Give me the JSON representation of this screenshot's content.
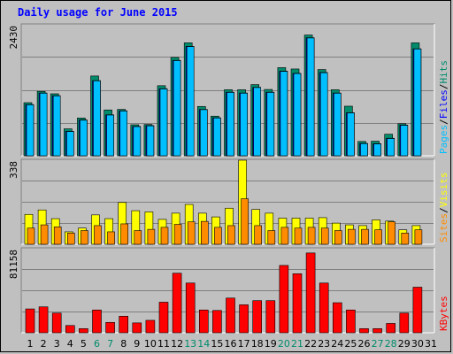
{
  "title": "Daily usage for June 2015",
  "panels": {
    "top": {
      "max_label": "2430",
      "ymax": 2430,
      "labels": [
        {
          "text": "Pages",
          "color": "#00bfff"
        },
        {
          "text": "/",
          "color": "#000000"
        },
        {
          "text": "Files",
          "color": "#0000ff"
        },
        {
          "text": "/",
          "color": "#000000"
        },
        {
          "text": "Hits",
          "color": "#008b6b"
        }
      ]
    },
    "middle": {
      "max_label": "338",
      "ymax": 338,
      "labels": [
        {
          "text": "Sites",
          "color": "#ff8c00"
        },
        {
          "text": "/",
          "color": "#000000"
        },
        {
          "text": "Visits",
          "color": "#ffff00"
        }
      ]
    },
    "bottom": {
      "max_label": "81158",
      "ymax": 81158,
      "labels": [
        {
          "text": "KBytes",
          "color": "#ff0000"
        }
      ]
    }
  },
  "colors": {
    "hits": "#008b6b",
    "files": "#0000ff",
    "pages": "#00bfff",
    "visits": "#ffff00",
    "sites": "#ff8c00",
    "kbytes": "#ff0000",
    "weekend_day": "#008b6b",
    "weekday": "#000000",
    "title": "#0000ff"
  },
  "chart_data": {
    "type": "bar",
    "title": "Daily usage for June 2015",
    "categories": [
      "1",
      "2",
      "3",
      "4",
      "5",
      "6",
      "7",
      "8",
      "9",
      "10",
      "11",
      "12",
      "13",
      "14",
      "15",
      "16",
      "17",
      "18",
      "19",
      "20",
      "21",
      "22",
      "23",
      "24",
      "25",
      "26",
      "27",
      "28",
      "29",
      "30",
      "31"
    ],
    "weekend_days": [
      "6",
      "7",
      "13",
      "14",
      "20",
      "21",
      "27",
      "28"
    ],
    "series": [
      {
        "name": "Hits",
        "values": [
          985,
          1195,
          1150,
          500,
          700,
          1480,
          850,
          860,
          575,
          580,
          1300,
          1825,
          2095,
          915,
          735,
          1225,
          1225,
          1320,
          1230,
          1635,
          1610,
          2240,
          1600,
          1225,
          920,
          265,
          270,
          400,
          595,
          2095,
          0
        ]
      },
      {
        "name": "Files",
        "values": [
          950,
          1165,
          1115,
          455,
          665,
          1395,
          760,
          835,
          545,
          560,
          1245,
          1770,
          2030,
          860,
          705,
          1180,
          1165,
          1270,
          1180,
          1570,
          1530,
          2190,
          1545,
          1165,
          800,
          230,
          225,
          325,
          570,
          1985,
          0
        ]
      },
      {
        "name": "Pages",
        "values": [
          945,
          1160,
          1110,
          450,
          660,
          1390,
          755,
          830,
          540,
          555,
          1240,
          1765,
          2025,
          855,
          700,
          1175,
          1160,
          1265,
          1175,
          1565,
          1525,
          2185,
          1540,
          1160,
          795,
          225,
          220,
          320,
          565,
          1980,
          0
        ]
      },
      {
        "name": "Visits",
        "values": [
          120,
          138,
          103,
          50,
          65,
          118,
          103,
          168,
          135,
          130,
          100,
          125,
          160,
          125,
          110,
          145,
          338,
          140,
          125,
          105,
          105,
          105,
          107,
          85,
          78,
          75,
          98,
          93,
          58,
          75,
          0
        ]
      },
      {
        "name": "Sites",
        "values": [
          65,
          78,
          70,
          45,
          55,
          75,
          50,
          82,
          55,
          60,
          68,
          80,
          90,
          92,
          68,
          75,
          183,
          75,
          55,
          68,
          65,
          68,
          65,
          55,
          60,
          60,
          58,
          90,
          45,
          58,
          0
        ]
      },
      {
        "name": "KBytes",
        "values": [
          23000,
          25000,
          19000,
          7000,
          4000,
          22000,
          10000,
          16000,
          9500,
          12000,
          29500,
          57500,
          48000,
          22000,
          21500,
          33500,
          27000,
          31000,
          31000,
          65000,
          57000,
          77000,
          48000,
          29000,
          22000,
          4000,
          4000,
          9000,
          19000,
          44000,
          0
        ]
      }
    ],
    "ylim_top": [
      0,
      2430
    ],
    "ylim_middle": [
      0,
      338
    ],
    "ylim_bottom": [
      0,
      81158
    ],
    "grid": true,
    "legend": "right-vertical"
  }
}
